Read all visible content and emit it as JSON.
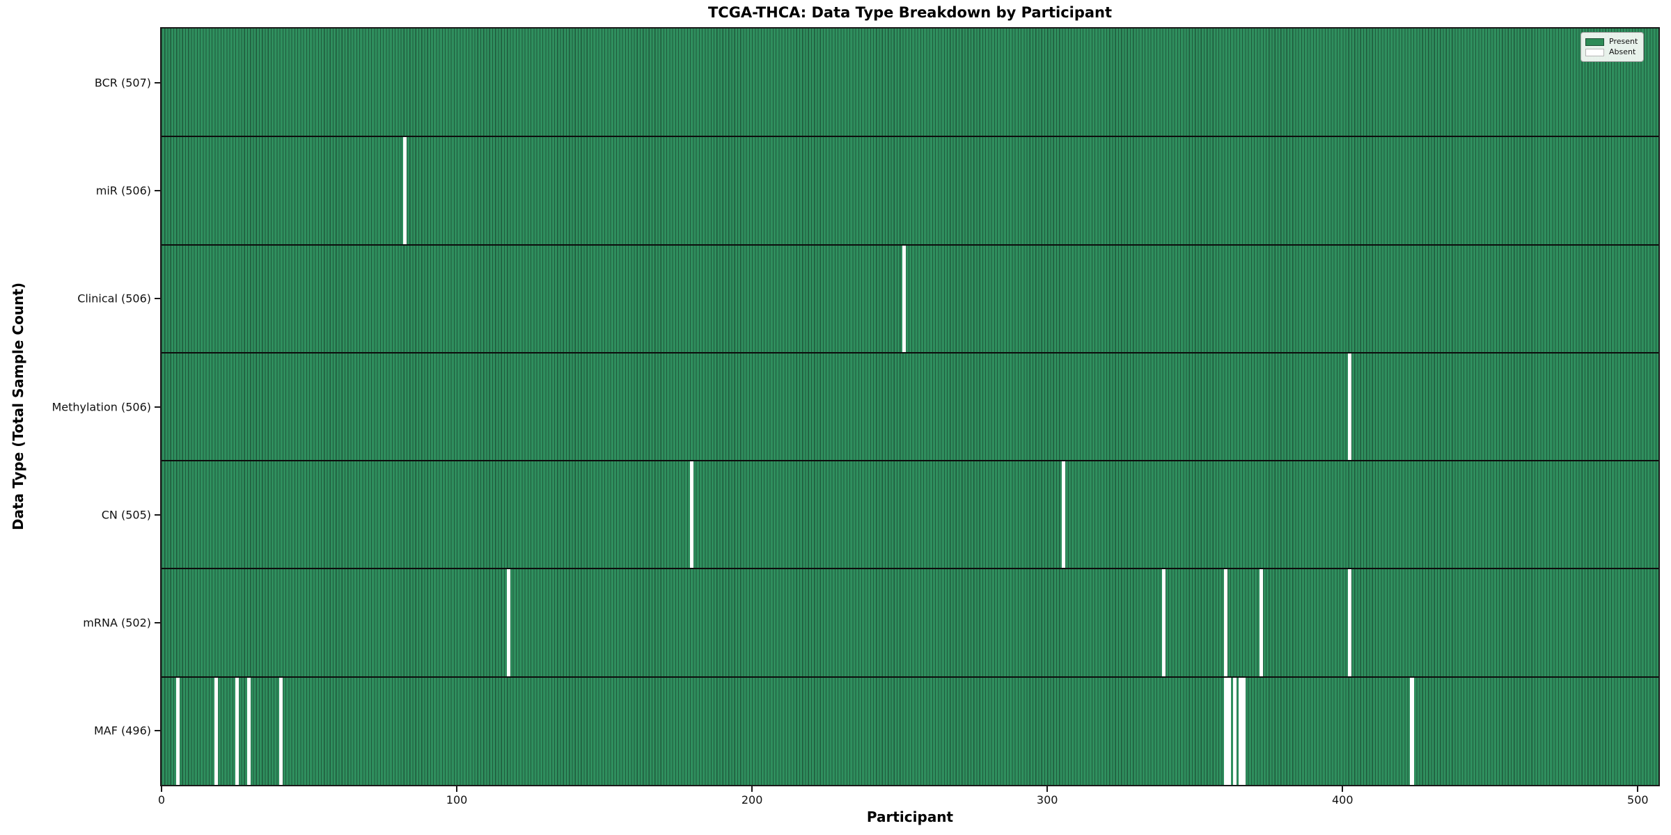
{
  "title": "TCGA-THCA: Data Type Breakdown by Participant",
  "chart_data": {
    "type": "heatmap",
    "title": "TCGA-THCA: Data Type Breakdown by Participant",
    "xlabel": "Participant",
    "ylabel": "Data Type (Total Sample Count)",
    "x_ticks": [
      0,
      100,
      200,
      300,
      400,
      500
    ],
    "xlim": [
      0,
      507
    ],
    "total_participants": 507,
    "grid": false,
    "legend": {
      "position": "upper right",
      "entries": [
        {
          "label": "Present",
          "color": "#2e8b57"
        },
        {
          "label": "Absent",
          "color": "#ffffff"
        }
      ]
    },
    "rows": [
      {
        "label": "BCR (507)",
        "data_type": "BCR",
        "present_count": 507,
        "absent_participants": []
      },
      {
        "label": "miR (506)",
        "data_type": "miR",
        "present_count": 506,
        "absent_participants": [
          82
        ]
      },
      {
        "label": "Clinical (506)",
        "data_type": "Clinical",
        "present_count": 506,
        "absent_participants": [
          251
        ]
      },
      {
        "label": "Methylation (506)",
        "data_type": "Methylation",
        "present_count": 506,
        "absent_participants": [
          402
        ]
      },
      {
        "label": "CN (505)",
        "data_type": "CN",
        "present_count": 505,
        "absent_participants": [
          179,
          305
        ]
      },
      {
        "label": "mRNA (502)",
        "data_type": "mRNA",
        "present_count": 502,
        "absent_participants": [
          117,
          339,
          360,
          372,
          402
        ]
      },
      {
        "label": "MAF (496)",
        "data_type": "MAF",
        "present_count": 496,
        "absent_participants": [
          5,
          18,
          25,
          29,
          40,
          360,
          361,
          363,
          365,
          366,
          423
        ]
      }
    ],
    "colors": {
      "present": "#2f8f5e",
      "absent": "#ffffff",
      "cell_edge": "#1f5a3c",
      "row_border": "#0d0d0d",
      "spine": "#1a1a1a",
      "legend_present": "#2e8b57"
    }
  }
}
